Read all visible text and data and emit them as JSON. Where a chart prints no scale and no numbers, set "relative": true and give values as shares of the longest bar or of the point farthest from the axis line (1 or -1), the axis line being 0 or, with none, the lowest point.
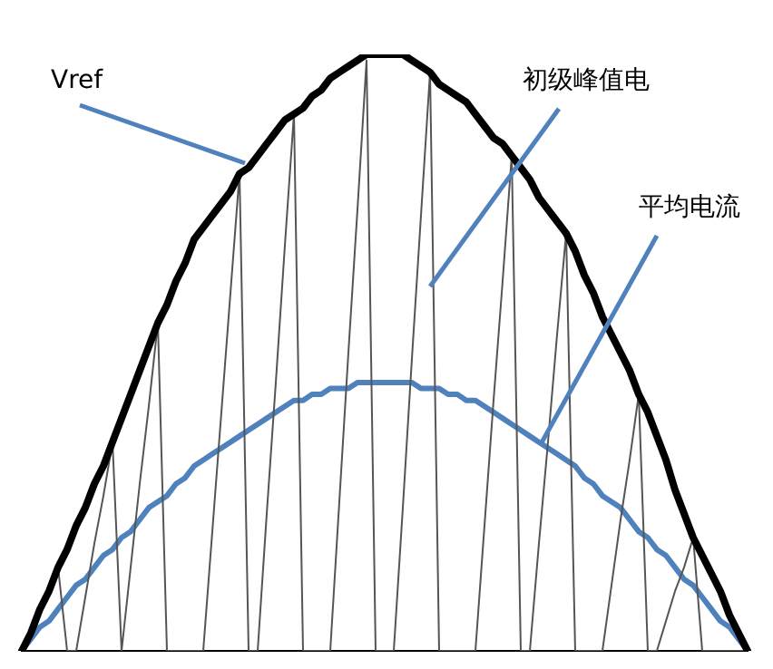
{
  "chart_data": {
    "type": "line",
    "relative": true,
    "grid": false,
    "legend": false,
    "marker": "none",
    "line_style": "solid",
    "categories": [
      null,
      null,
      null,
      null,
      null,
      null,
      null,
      null,
      null,
      null,
      null,
      null,
      null,
      null,
      null,
      null,
      null,
      null,
      null,
      null,
      null,
      null,
      null,
      null,
      null,
      null,
      null,
      null,
      null,
      null,
      null,
      null,
      null,
      null,
      null,
      null,
      null,
      null,
      null,
      null,
      null,
      null,
      null,
      null,
      null,
      null,
      null,
      null,
      null,
      null,
      null,
      null,
      null,
      null,
      null,
      null,
      null,
      null,
      null,
      null,
      null,
      null,
      null,
      null,
      null,
      null,
      null,
      null,
      null,
      null,
      null,
      null,
      null,
      null,
      null,
      null,
      null,
      null,
      null,
      null,
      null
    ],
    "series": [
      {
        "color": "#000000",
        "values": [
          0,
          0.03,
          0.07,
          0.1,
          0.14,
          0.17,
          0.21,
          0.24,
          0.28,
          0.31,
          0.35,
          0.39,
          0.43,
          0.47,
          0.51,
          0.55,
          0.58,
          0.62,
          0.65,
          0.69,
          0.71,
          0.73,
          0.75,
          0.77,
          0.8,
          0.81,
          0.83,
          0.85,
          0.87,
          0.89,
          0.9,
          0.91,
          0.93,
          0.94,
          0.96,
          0.97,
          0.98,
          0.99,
          1,
          1,
          1,
          1,
          1,
          0.99,
          0.98,
          0.97,
          0.95,
          0.94,
          0.93,
          0.92,
          0.9,
          0.88,
          0.86,
          0.85,
          0.83,
          0.81,
          0.79,
          0.76,
          0.74,
          0.72,
          0.7,
          0.67,
          0.63,
          0.6,
          0.56,
          0.53,
          0.5,
          0.47,
          0.43,
          0.4,
          0.36,
          0.32,
          0.27,
          0.23,
          0.19,
          0.16,
          0.13,
          0.1,
          0.06,
          0.03,
          0
        ]
      },
      {
        "color": "#555555",
        "values": [
          0,
          0.04,
          0.07,
          0.11,
          0.14,
          0,
          0,
          0.09,
          0.18,
          0.26,
          0.35,
          0,
          0.14,
          0.28,
          0.41,
          0.55,
          0,
          0,
          0,
          0,
          0,
          0.2,
          0.4,
          0.6,
          0.8,
          0,
          0,
          0.23,
          0.45,
          0.68,
          0.9,
          0,
          0,
          0,
          0,
          0.25,
          0.5,
          0.74,
          0.99,
          0,
          0,
          0,
          0.24,
          0.49,
          0.73,
          0.97,
          0,
          0,
          0,
          0,
          0,
          0.21,
          0.42,
          0.62,
          0.83,
          0,
          0,
          0.18,
          0.35,
          0.53,
          0.7,
          0,
          0,
          0,
          0,
          0.11,
          0.22,
          0.32,
          0.43,
          0,
          0,
          0.05,
          0.1,
          0.14,
          0.19,
          0,
          0,
          0,
          0,
          0,
          0
        ]
      },
      {
        "color": "#4f81bd",
        "values": [
          0,
          0.02,
          0.04,
          0.05,
          0.07,
          0.09,
          0.11,
          0.12,
          0.14,
          0.16,
          0.17,
          0.19,
          0.2,
          0.22,
          0.24,
          0.25,
          0.26,
          0.28,
          0.29,
          0.31,
          0.32,
          0.33,
          0.34,
          0.35,
          0.36,
          0.37,
          0.38,
          0.39,
          0.4,
          0.41,
          0.42,
          0.42,
          0.43,
          0.43,
          0.44,
          0.44,
          0.44,
          0.45,
          0.45,
          0.45,
          0.45,
          0.45,
          0.45,
          0.45,
          0.44,
          0.44,
          0.44,
          0.43,
          0.43,
          0.42,
          0.42,
          0.41,
          0.4,
          0.39,
          0.38,
          0.37,
          0.36,
          0.35,
          0.34,
          0.33,
          0.32,
          0.31,
          0.29,
          0.28,
          0.26,
          0.25,
          0.24,
          0.22,
          0.2,
          0.19,
          0.17,
          0.16,
          0.14,
          0.12,
          0.11,
          0.09,
          0.07,
          0.05,
          0.04,
          0.02,
          0
        ]
      }
    ],
    "annotations": [
      "Vref",
      "初级峰值电",
      "平均电流"
    ]
  }
}
